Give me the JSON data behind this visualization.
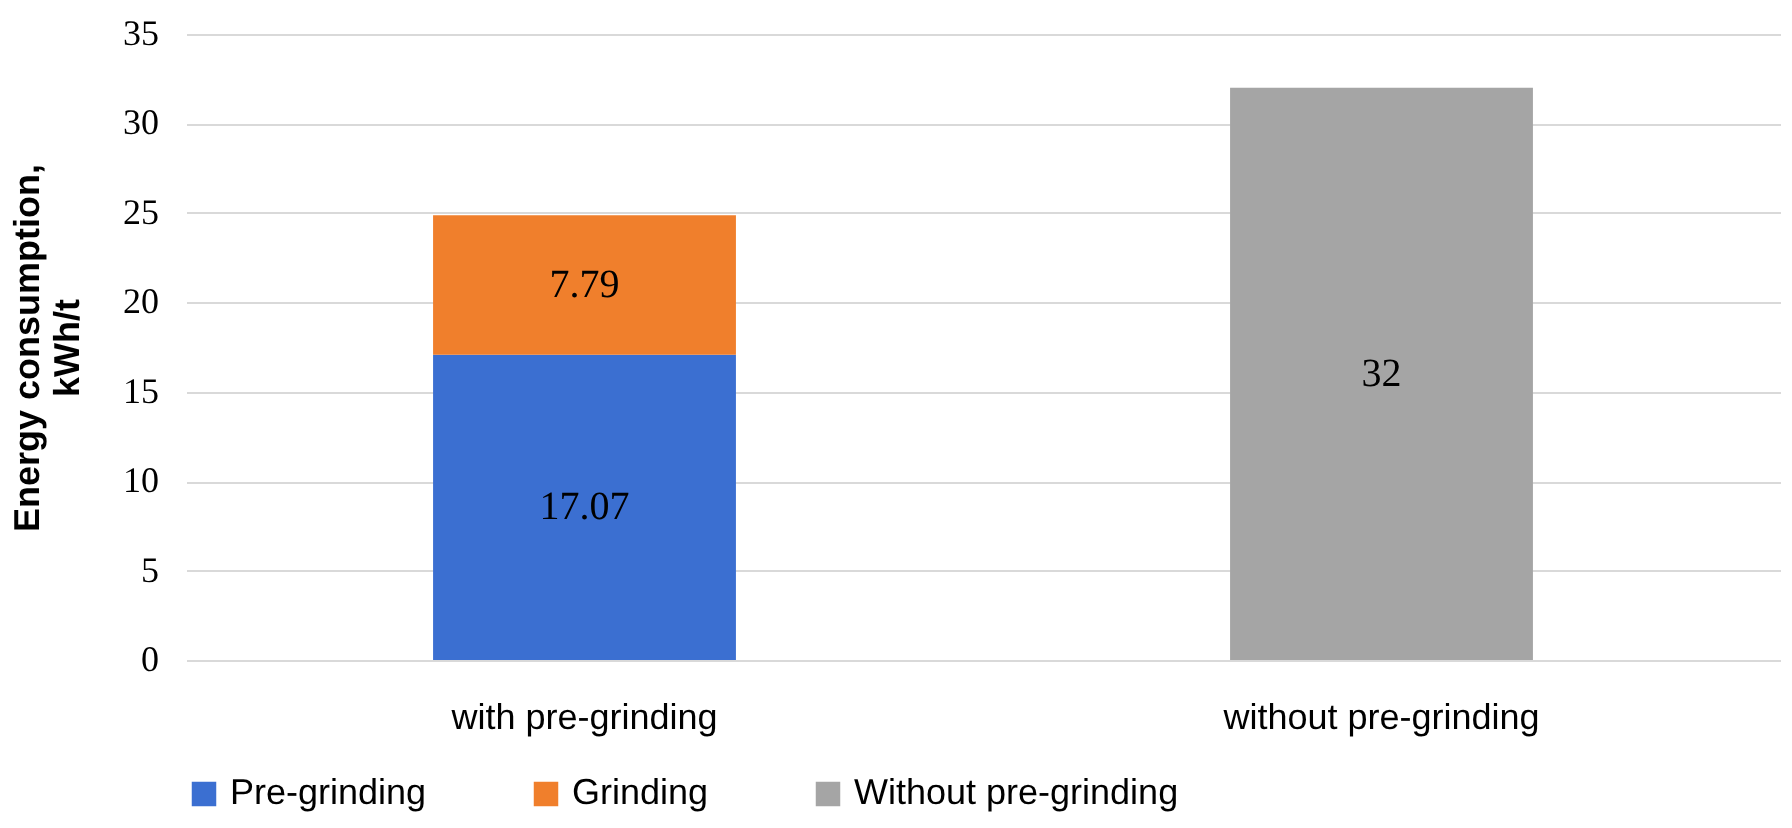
{
  "chart_data": {
    "type": "bar",
    "stacked": true,
    "ylabel": "Energy consumption, kWh/t",
    "categories": [
      "with pre-grinding",
      "without pre-grinding"
    ],
    "series": [
      {
        "name": "Pre-grinding",
        "color": "#3b6fd1",
        "values": [
          17.07,
          null
        ]
      },
      {
        "name": "Grinding",
        "color": "#f07f2c",
        "values": [
          7.79,
          null
        ]
      },
      {
        "name": "Without pre-grinding",
        "color": "#a5a5a5",
        "values": [
          null,
          32
        ]
      }
    ],
    "ylim": [
      0,
      35
    ],
    "yticks": [
      0,
      5,
      10,
      15,
      20,
      25,
      30,
      35
    ],
    "grid": "y",
    "legend": "bottom",
    "data_labels": true
  }
}
